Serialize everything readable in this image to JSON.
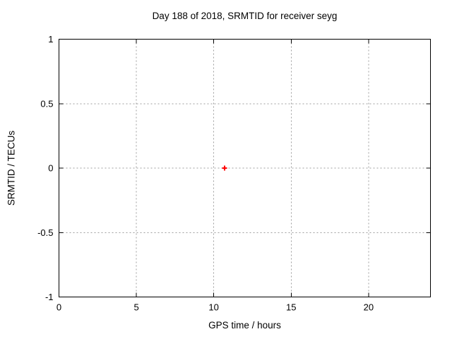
{
  "window": {
    "background": "#ffffff"
  },
  "chart_data": {
    "type": "scatter",
    "title": "Day 188 of 2018, SRMTID for receiver seyg",
    "xlabel": "GPS time / hours",
    "ylabel": "SRMTID / TECUs",
    "xlim": [
      0,
      24
    ],
    "ylim": [
      -1,
      1
    ],
    "xticks": {
      "values": [
        0,
        5,
        10,
        15,
        20
      ],
      "labels": [
        "0",
        "5",
        "10",
        "15",
        "20"
      ]
    },
    "yticks": {
      "values": [
        -1,
        -0.5,
        0,
        0.5,
        1
      ],
      "labels": [
        "-1",
        "-0.5",
        "0",
        "0.5",
        "1"
      ]
    },
    "grid": true,
    "grid_style": "dotted",
    "legend": "none",
    "series": [
      {
        "name": "SRMTID",
        "marker": "plus",
        "color": "#ff0000",
        "x": [
          10.7
        ],
        "y": [
          0.0
        ]
      }
    ],
    "colors": {
      "background": "#ffffff",
      "border": "#000000",
      "grid": "#9e9e9e",
      "text": "#000000"
    }
  }
}
